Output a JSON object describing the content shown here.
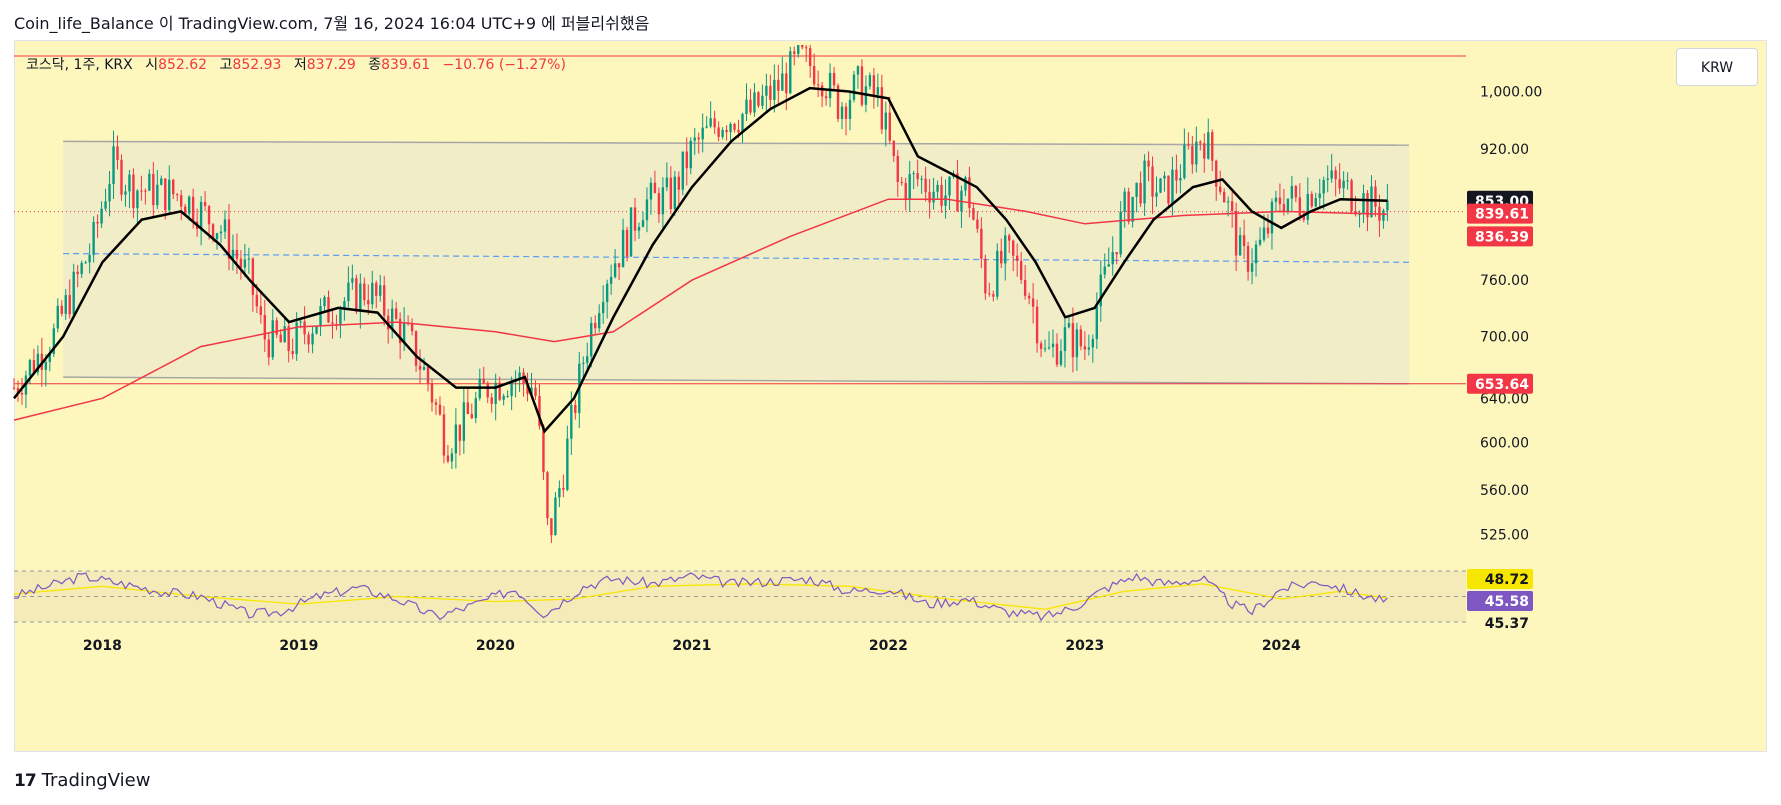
{
  "header": {
    "publish_line": "Coin_life_Balance 이 TradingView.com, 7월 16, 2024 16:04 UTC+9 에 퍼블리쉬했음"
  },
  "legend": {
    "symbol": "코스닥, 1주, KRX",
    "open_label": "시",
    "open": "852.62",
    "high_label": "고",
    "high": "852.93",
    "low_label": "저",
    "low": "837.29",
    "close_label": "종",
    "close": "839.61",
    "change": "−10.76 (−1.27%)"
  },
  "currency_button": "KRW",
  "footer": {
    "brand": "TradingView",
    "brand_mark": "17"
  },
  "colors": {
    "up": "#089981",
    "down": "#f23645",
    "background": "#fdf7bd",
    "rsi_line": "#7e57c2",
    "rsi_ma": "#f7e600",
    "ma_long": "#f23645",
    "ma_short": "#000000",
    "channel_fill": "#eeebc9",
    "midline": "#5b9cf6"
  },
  "chart_data": {
    "type": "candlestick",
    "title": "코스닥, 1주, KRX",
    "scale": "log",
    "ylim": [
      500,
      1070
    ],
    "y_ticks": [
      "1,000.00",
      "920.00",
      "760.00",
      "700.00",
      "640.00",
      "600.00",
      "560.00",
      "525.00"
    ],
    "x_ticks": [
      "2018",
      "2019",
      "2020",
      "2021",
      "2022",
      "2023",
      "2024"
    ],
    "price_labels": [
      {
        "text": "853.00",
        "value": 853.0,
        "style": "dark"
      },
      {
        "text": "839.61",
        "value": 839.61,
        "style": "red"
      },
      {
        "text": "836.39",
        "value": 836.39,
        "style": "red"
      },
      {
        "text": "653.64",
        "value": 653.64,
        "style": "red"
      }
    ],
    "horizontal_lines": [
      {
        "value": 1053,
        "color": "#f23645"
      },
      {
        "value": 653.64,
        "color": "#f23645"
      }
    ],
    "close_key_points": [
      [
        2017.55,
        650
      ],
      [
        2017.75,
        700
      ],
      [
        2017.95,
        800
      ],
      [
        2018.05,
        900
      ],
      [
        2018.15,
        870
      ],
      [
        2018.4,
        860
      ],
      [
        2018.6,
        820
      ],
      [
        2018.75,
        760
      ],
      [
        2018.82,
        700
      ],
      [
        2018.95,
        690
      ],
      [
        2019.1,
        720
      ],
      [
        2019.25,
        740
      ],
      [
        2019.35,
        750
      ],
      [
        2019.55,
        700
      ],
      [
        2019.65,
        660
      ],
      [
        2019.75,
        600
      ],
      [
        2019.85,
        620
      ],
      [
        2019.95,
        650
      ],
      [
        2020.1,
        660
      ],
      [
        2020.2,
        650
      ],
      [
        2020.27,
        520
      ],
      [
        2020.35,
        580
      ],
      [
        2020.45,
        680
      ],
      [
        2020.55,
        760
      ],
      [
        2020.65,
        800
      ],
      [
        2020.75,
        850
      ],
      [
        2020.9,
        860
      ],
      [
        2021.0,
        920
      ],
      [
        2021.15,
        960
      ],
      [
        2021.3,
        970
      ],
      [
        2021.45,
        1010
      ],
      [
        2021.55,
        1050
      ],
      [
        2021.65,
        1030
      ],
      [
        2021.75,
        980
      ],
      [
        2021.85,
        1010
      ],
      [
        2021.95,
        990
      ],
      [
        2022.05,
        870
      ],
      [
        2022.15,
        880
      ],
      [
        2022.3,
        860
      ],
      [
        2022.4,
        870
      ],
      [
        2022.5,
        750
      ],
      [
        2022.6,
        790
      ],
      [
        2022.7,
        760
      ],
      [
        2022.8,
        680
      ],
      [
        2022.9,
        700
      ],
      [
        2023.0,
        690
      ],
      [
        2023.1,
        760
      ],
      [
        2023.2,
        840
      ],
      [
        2023.3,
        880
      ],
      [
        2023.4,
        860
      ],
      [
        2023.5,
        900
      ],
      [
        2023.6,
        940
      ],
      [
        2023.7,
        870
      ],
      [
        2023.8,
        780
      ],
      [
        2023.9,
        800
      ],
      [
        2024.0,
        860
      ],
      [
        2024.1,
        850
      ],
      [
        2024.2,
        880
      ],
      [
        2024.3,
        870
      ],
      [
        2024.45,
        850
      ],
      [
        2024.54,
        839.61
      ]
    ],
    "ma_long_points": [
      [
        2017.55,
        620
      ],
      [
        2018.0,
        640
      ],
      [
        2018.5,
        690
      ],
      [
        2019.0,
        710
      ],
      [
        2019.5,
        715
      ],
      [
        2020.0,
        705
      ],
      [
        2020.3,
        695
      ],
      [
        2020.6,
        705
      ],
      [
        2021.0,
        760
      ],
      [
        2021.5,
        810
      ],
      [
        2022.0,
        855
      ],
      [
        2022.3,
        855
      ],
      [
        2022.7,
        840
      ],
      [
        2023.0,
        825
      ],
      [
        2023.5,
        835
      ],
      [
        2024.0,
        840
      ],
      [
        2024.54,
        836.39
      ]
    ],
    "ma_short_points": [
      [
        2017.55,
        640
      ],
      [
        2017.8,
        700
      ],
      [
        2018.0,
        780
      ],
      [
        2018.2,
        830
      ],
      [
        2018.4,
        840
      ],
      [
        2018.6,
        800
      ],
      [
        2018.75,
        760
      ],
      [
        2018.95,
        715
      ],
      [
        2019.2,
        730
      ],
      [
        2019.4,
        725
      ],
      [
        2019.6,
        680
      ],
      [
        2019.8,
        650
      ],
      [
        2020.0,
        650
      ],
      [
        2020.15,
        660
      ],
      [
        2020.25,
        610
      ],
      [
        2020.4,
        640
      ],
      [
        2020.6,
        720
      ],
      [
        2020.8,
        800
      ],
      [
        2021.0,
        870
      ],
      [
        2021.2,
        930
      ],
      [
        2021.4,
        975
      ],
      [
        2021.6,
        1005
      ],
      [
        2021.8,
        1000
      ],
      [
        2022.0,
        990
      ],
      [
        2022.15,
        910
      ],
      [
        2022.3,
        890
      ],
      [
        2022.45,
        870
      ],
      [
        2022.6,
        830
      ],
      [
        2022.75,
        780
      ],
      [
        2022.9,
        720
      ],
      [
        2023.05,
        730
      ],
      [
        2023.2,
        780
      ],
      [
        2023.35,
        830
      ],
      [
        2023.55,
        870
      ],
      [
        2023.7,
        880
      ],
      [
        2023.85,
        840
      ],
      [
        2024.0,
        820
      ],
      [
        2024.15,
        840
      ],
      [
        2024.3,
        855
      ],
      [
        2024.54,
        853
      ]
    ],
    "channel": {
      "x_start": 2017.8,
      "x_end": 2024.65,
      "upper": [
        930,
        925
      ],
      "lower": [
        660,
        653.64
      ],
      "mid": [
        790,
        780
      ]
    },
    "rsi": {
      "ylim": [
        30,
        70
      ],
      "labels": [
        {
          "text": "48.72",
          "value": 48.72,
          "style": "yellow"
        },
        {
          "text": "45.58",
          "value": 45.58,
          "style": "purple"
        },
        {
          "text": "45.37",
          "value": 45.37,
          "style": "plain"
        }
      ],
      "levels": [
        70,
        50,
        30
      ],
      "rsi_points": [
        [
          2017.55,
          50
        ],
        [
          2017.9,
          66
        ],
        [
          2018.1,
          60
        ],
        [
          2018.3,
          54
        ],
        [
          2018.5,
          50
        ],
        [
          2018.75,
          36
        ],
        [
          2018.9,
          38
        ],
        [
          2019.1,
          50
        ],
        [
          2019.3,
          57
        ],
        [
          2019.5,
          48
        ],
        [
          2019.7,
          34
        ],
        [
          2019.9,
          44
        ],
        [
          2020.1,
          56
        ],
        [
          2020.25,
          36
        ],
        [
          2020.45,
          58
        ],
        [
          2020.6,
          64
        ],
        [
          2020.8,
          60
        ],
        [
          2021.0,
          66
        ],
        [
          2021.2,
          60
        ],
        [
          2021.4,
          62
        ],
        [
          2021.6,
          64
        ],
        [
          2021.8,
          54
        ],
        [
          2022.0,
          56
        ],
        [
          2022.2,
          44
        ],
        [
          2022.4,
          48
        ],
        [
          2022.6,
          38
        ],
        [
          2022.8,
          34
        ],
        [
          2022.95,
          42
        ],
        [
          2023.1,
          56
        ],
        [
          2023.25,
          66
        ],
        [
          2023.4,
          60
        ],
        [
          2023.6,
          64
        ],
        [
          2023.75,
          44
        ],
        [
          2023.85,
          38
        ],
        [
          2024.0,
          56
        ],
        [
          2024.2,
          62
        ],
        [
          2024.35,
          54
        ],
        [
          2024.54,
          45.58
        ]
      ],
      "ma_points": [
        [
          2017.55,
          52
        ],
        [
          2018.0,
          58
        ],
        [
          2018.5,
          50
        ],
        [
          2019.0,
          44
        ],
        [
          2019.5,
          50
        ],
        [
          2020.0,
          46
        ],
        [
          2020.4,
          48
        ],
        [
          2020.8,
          58
        ],
        [
          2021.3,
          60
        ],
        [
          2021.8,
          58
        ],
        [
          2022.3,
          48
        ],
        [
          2022.8,
          40
        ],
        [
          2023.2,
          54
        ],
        [
          2023.6,
          60
        ],
        [
          2024.0,
          48
        ],
        [
          2024.3,
          54
        ],
        [
          2024.54,
          48.72
        ]
      ]
    }
  }
}
